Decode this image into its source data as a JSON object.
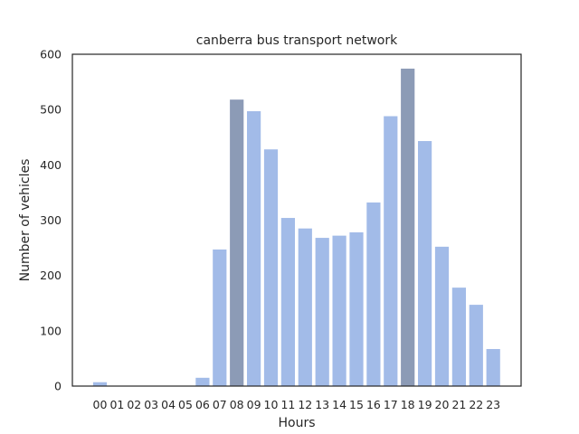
{
  "chart_data": {
    "type": "bar",
    "title": "canberra bus transport network",
    "xlabel": "Hours",
    "ylabel": "Number of vehicles",
    "ylim": [
      0,
      600
    ],
    "yticks": [
      0,
      100,
      200,
      300,
      400,
      500,
      600
    ],
    "grid": false,
    "categories": [
      "00",
      "01",
      "02",
      "03",
      "04",
      "05",
      "06",
      "07",
      "08",
      "09",
      "10",
      "11",
      "12",
      "13",
      "14",
      "15",
      "16",
      "17",
      "18",
      "19",
      "20",
      "21",
      "22",
      "23"
    ],
    "values": [
      7,
      0,
      0,
      0,
      0,
      0,
      15,
      247,
      518,
      497,
      428,
      304,
      285,
      268,
      272,
      278,
      332,
      488,
      574,
      443,
      252,
      178,
      147,
      67
    ],
    "colors": {
      "default": "#a2bbe8",
      "highlight": "#8c9bb6",
      "axis": "#262626"
    },
    "highlight_categories": [
      "08",
      "18"
    ]
  }
}
